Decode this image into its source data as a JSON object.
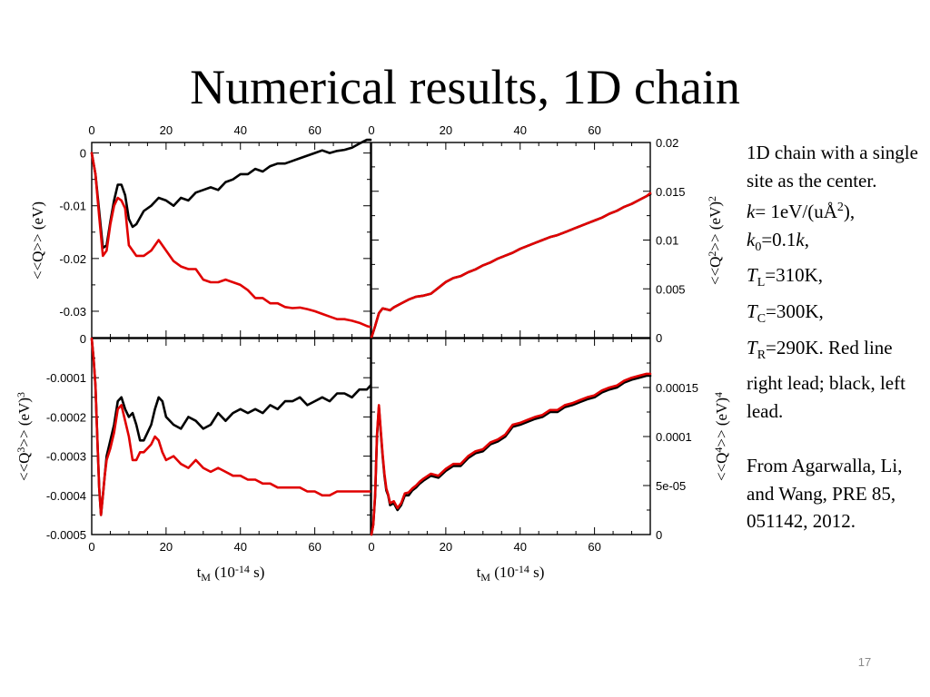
{
  "slide": {
    "title": "Numerical results, 1D chain",
    "page_number": "17",
    "notes": [
      {
        "text": "1D chain with a single site as the center."
      },
      {
        "parts": [
          {
            "t": "k",
            "i": true
          },
          {
            "t": "= 1eV/(uÅ"
          },
          {
            "t": "2",
            "sup": true
          },
          {
            "t": "),"
          }
        ]
      },
      {
        "parts": [
          {
            "t": "k",
            "i": true
          },
          {
            "t": "0",
            "sub": true
          },
          {
            "t": "=0.1"
          },
          {
            "t": "k",
            "i": true
          },
          {
            "t": ","
          }
        ]
      },
      {
        "parts": [
          {
            "t": "T",
            "i": true
          },
          {
            "t": "L",
            "sub": true
          },
          {
            "t": "=310K,"
          }
        ]
      },
      {
        "parts": [
          {
            "t": "T",
            "i": true
          },
          {
            "t": "C",
            "sub": true
          },
          {
            "t": "=300K,"
          }
        ]
      },
      {
        "parts": [
          {
            "t": "T",
            "i": true
          },
          {
            "t": "R",
            "sub": true
          },
          {
            "t": "=290K.  Red line right lead; black, left lead."
          }
        ]
      },
      {
        "gap": true
      },
      {
        "text": "From Agarwalla, Li, and Wang, PRE  85, 051142, 2012."
      }
    ]
  },
  "chart_data": [
    {
      "type": "line",
      "panel": "top-left",
      "ylabel": "<<Q>> (eV)",
      "xlim": [
        0,
        75
      ],
      "ylim": [
        -0.035,
        0.002
      ],
      "xticks": [
        "0",
        "20",
        "40",
        "60"
      ],
      "yticks": [
        "0",
        "-0.01",
        "-0.02",
        "-0.03"
      ],
      "series": [
        {
          "color": "#000000",
          "x": [
            0,
            1,
            2,
            3,
            4,
            5,
            6,
            7,
            8,
            9,
            10,
            11,
            12,
            14,
            16,
            18,
            20,
            22,
            24,
            26,
            28,
            30,
            32,
            34,
            36,
            38,
            40,
            42,
            44,
            46,
            48,
            50,
            52,
            54,
            56,
            58,
            60,
            62,
            64,
            66,
            68,
            70,
            72,
            74,
            75
          ],
          "y": [
            0,
            -0.004,
            -0.011,
            -0.018,
            -0.0175,
            -0.013,
            -0.009,
            -0.006,
            -0.006,
            -0.008,
            -0.0125,
            -0.014,
            -0.0135,
            -0.011,
            -0.01,
            -0.0085,
            -0.009,
            -0.01,
            -0.0085,
            -0.009,
            -0.0075,
            -0.007,
            -0.0065,
            -0.007,
            -0.0055,
            -0.005,
            -0.004,
            -0.004,
            -0.003,
            -0.0035,
            -0.0025,
            -0.002,
            -0.002,
            -0.0015,
            -0.001,
            -0.0005,
            0,
            0.0005,
            0,
            0.0004,
            0.0006,
            0.001,
            0.0018,
            0.0025,
            0.0025
          ]
        },
        {
          "color": "#e00000",
          "x": [
            0,
            1,
            2,
            3,
            4,
            5,
            6,
            7,
            8,
            9,
            10,
            12,
            14,
            16,
            18,
            20,
            22,
            24,
            26,
            28,
            30,
            32,
            34,
            36,
            38,
            40,
            42,
            44,
            46,
            48,
            50,
            52,
            54,
            56,
            58,
            60,
            62,
            64,
            66,
            68,
            70,
            72,
            74,
            75
          ],
          "y": [
            0,
            -0.004,
            -0.012,
            -0.0195,
            -0.0185,
            -0.0135,
            -0.01,
            -0.0085,
            -0.009,
            -0.0105,
            -0.0175,
            -0.0195,
            -0.0195,
            -0.0185,
            -0.0165,
            -0.0185,
            -0.0205,
            -0.0215,
            -0.022,
            -0.022,
            -0.024,
            -0.0245,
            -0.0245,
            -0.024,
            -0.0245,
            -0.025,
            -0.026,
            -0.0275,
            -0.0275,
            -0.0285,
            -0.0285,
            -0.0292,
            -0.0294,
            -0.0293,
            -0.0296,
            -0.03,
            -0.0305,
            -0.031,
            -0.0315,
            -0.0315,
            -0.0318,
            -0.0322,
            -0.0328,
            -0.033
          ]
        }
      ]
    },
    {
      "type": "line",
      "panel": "top-right",
      "ylabel": "<<Q2>> (eV)2",
      "xlim": [
        0,
        75
      ],
      "ylim": [
        0,
        0.02
      ],
      "xticks": [
        "0",
        "20",
        "40",
        "60"
      ],
      "yticks": [
        "0.02",
        "0.015",
        "0.01",
        "0.005",
        "0"
      ],
      "series": [
        {
          "color": "#000000",
          "x": [
            0,
            1,
            2,
            3,
            4,
            5,
            6,
            8,
            10,
            12,
            14,
            16,
            18,
            20,
            22,
            24,
            26,
            28,
            30,
            32,
            34,
            36,
            38,
            40,
            42,
            44,
            46,
            48,
            50,
            52,
            54,
            56,
            58,
            60,
            62,
            64,
            66,
            68,
            70,
            72,
            74,
            75
          ],
          "y": [
            0,
            0.0012,
            0.0025,
            0.003,
            0.0029,
            0.0028,
            0.0031,
            0.0035,
            0.0039,
            0.0042,
            0.0043,
            0.0045,
            0.0051,
            0.0057,
            0.0061,
            0.0063,
            0.0067,
            0.007,
            0.0074,
            0.0077,
            0.0081,
            0.0084,
            0.0087,
            0.0091,
            0.0094,
            0.0097,
            0.01,
            0.0103,
            0.0105,
            0.0108,
            0.0111,
            0.0114,
            0.0117,
            0.012,
            0.0123,
            0.0127,
            0.013,
            0.0134,
            0.0137,
            0.0141,
            0.0145,
            0.0147
          ]
        },
        {
          "color": "#e00000",
          "x": [
            0,
            1,
            2,
            3,
            4,
            5,
            6,
            8,
            10,
            12,
            14,
            16,
            18,
            20,
            22,
            24,
            26,
            28,
            30,
            32,
            34,
            36,
            38,
            40,
            42,
            44,
            46,
            48,
            50,
            52,
            54,
            56,
            58,
            60,
            62,
            64,
            66,
            68,
            70,
            72,
            74,
            75
          ],
          "y": [
            0,
            0.0012,
            0.0025,
            0.003,
            0.0029,
            0.0028,
            0.0031,
            0.0035,
            0.0039,
            0.0042,
            0.0043,
            0.0045,
            0.0051,
            0.0057,
            0.0061,
            0.0063,
            0.0067,
            0.007,
            0.0074,
            0.0077,
            0.0081,
            0.0084,
            0.0087,
            0.0091,
            0.0094,
            0.0097,
            0.01,
            0.0103,
            0.0105,
            0.0108,
            0.0111,
            0.0114,
            0.0117,
            0.012,
            0.0123,
            0.0127,
            0.013,
            0.0134,
            0.0137,
            0.0141,
            0.0145,
            0.0148
          ]
        }
      ]
    },
    {
      "type": "line",
      "panel": "bottom-left",
      "ylabel": "<<Q3>> (eV)3",
      "xlabel": "tM (10-14 s)",
      "xlim": [
        0,
        75
      ],
      "ylim": [
        -0.0005,
        0
      ],
      "xticks": [
        "0",
        "20",
        "40",
        "60"
      ],
      "yticks": [
        "0",
        "-0.0001",
        "-0.0002",
        "-0.0003",
        "-0.0004",
        "-0.0005"
      ],
      "series": [
        {
          "color": "#000000",
          "x": [
            0,
            0.5,
            1,
            1.5,
            2,
            2.5,
            3,
            3.5,
            4,
            5,
            6,
            7,
            8,
            9,
            10,
            11,
            12,
            13,
            14,
            15,
            16,
            17,
            18,
            19,
            20,
            22,
            24,
            26,
            28,
            30,
            32,
            34,
            36,
            38,
            40,
            42,
            44,
            46,
            48,
            50,
            52,
            54,
            56,
            58,
            60,
            62,
            64,
            66,
            68,
            70,
            72,
            74,
            75
          ],
          "y": [
            0,
            -5e-05,
            -0.00012,
            -0.00025,
            -0.00038,
            -0.00045,
            -0.0004,
            -0.00035,
            -0.0003,
            -0.00026,
            -0.00022,
            -0.00016,
            -0.00015,
            -0.00018,
            -0.0002,
            -0.00019,
            -0.00022,
            -0.00026,
            -0.00026,
            -0.00024,
            -0.00022,
            -0.00018,
            -0.00015,
            -0.00016,
            -0.0002,
            -0.00022,
            -0.00023,
            -0.0002,
            -0.00021,
            -0.00023,
            -0.00022,
            -0.00019,
            -0.00021,
            -0.00019,
            -0.00018,
            -0.00019,
            -0.00018,
            -0.00019,
            -0.00017,
            -0.00018,
            -0.00016,
            -0.00016,
            -0.00015,
            -0.00017,
            -0.00016,
            -0.00015,
            -0.00016,
            -0.00014,
            -0.00014,
            -0.00015,
            -0.00013,
            -0.00013,
            -0.00012
          ]
        },
        {
          "color": "#e00000",
          "x": [
            0,
            0.5,
            1,
            1.5,
            2,
            2.5,
            3,
            3.5,
            4,
            5,
            6,
            7,
            8,
            9,
            10,
            11,
            12,
            13,
            14,
            15,
            16,
            17,
            18,
            19,
            20,
            22,
            24,
            26,
            28,
            30,
            32,
            34,
            36,
            38,
            40,
            42,
            44,
            46,
            48,
            50,
            52,
            54,
            56,
            58,
            60,
            62,
            64,
            66,
            68,
            70,
            72,
            74,
            75
          ],
          "y": [
            0,
            -5e-05,
            -0.00012,
            -0.00025,
            -0.00038,
            -0.00045,
            -0.0004,
            -0.00035,
            -0.00031,
            -0.00028,
            -0.00024,
            -0.00018,
            -0.00017,
            -0.00021,
            -0.00025,
            -0.00031,
            -0.00031,
            -0.00029,
            -0.00029,
            -0.00028,
            -0.00027,
            -0.00025,
            -0.00026,
            -0.00029,
            -0.00031,
            -0.0003,
            -0.00032,
            -0.00033,
            -0.00031,
            -0.00033,
            -0.00034,
            -0.00033,
            -0.00034,
            -0.00035,
            -0.00035,
            -0.00036,
            -0.00036,
            -0.00037,
            -0.00037,
            -0.00038,
            -0.00038,
            -0.00038,
            -0.00038,
            -0.00039,
            -0.00039,
            -0.0004,
            -0.0004,
            -0.00039,
            -0.00039,
            -0.00039,
            -0.00039,
            -0.00039,
            -0.00039
          ]
        }
      ]
    },
    {
      "type": "line",
      "panel": "bottom-right",
      "ylabel": "<<Q4>> (eV)4",
      "xlabel": "tM (10-14 s)",
      "xlim": [
        0,
        75
      ],
      "ylim": [
        0,
        0.0002
      ],
      "xticks": [
        "0",
        "20",
        "40",
        "60"
      ],
      "yticks": [
        "0",
        "5e-05",
        "0.0001",
        "0.00015"
      ],
      "series": [
        {
          "color": "#000000",
          "x": [
            0,
            0.5,
            1,
            1.5,
            2,
            2.5,
            3,
            3.5,
            4,
            4.5,
            5,
            6,
            7,
            8,
            9,
            10,
            11,
            12,
            13,
            14,
            16,
            18,
            20,
            22,
            24,
            26,
            28,
            30,
            32,
            34,
            36,
            38,
            40,
            42,
            44,
            46,
            48,
            50,
            52,
            54,
            56,
            58,
            60,
            62,
            64,
            66,
            68,
            70,
            72,
            74,
            75
          ],
          "y": [
            0,
            1e-05,
            4e-05,
            0.0001,
            0.00013,
            0.000105,
            8e-05,
            6e-05,
            4.5e-05,
            4e-05,
            3e-05,
            3.2e-05,
            2.5e-05,
            3e-05,
            4e-05,
            4e-05,
            4.5e-05,
            4.8e-05,
            5.2e-05,
            5.5e-05,
            6e-05,
            5.8e-05,
            6.5e-05,
            7e-05,
            7e-05,
            7.8e-05,
            8.3e-05,
            8.5e-05,
            9.2e-05,
            9.5e-05,
            0.0001,
            0.00011,
            0.000112,
            0.000115,
            0.000118,
            0.00012,
            0.000125,
            0.000125,
            0.00013,
            0.000132,
            0.000135,
            0.000138,
            0.00014,
            0.000145,
            0.000148,
            0.00015,
            0.000155,
            0.000158,
            0.00016,
            0.000162,
            0.000162
          ]
        },
        {
          "color": "#e00000",
          "x": [
            0,
            0.5,
            1,
            1.5,
            2,
            2.5,
            3,
            3.5,
            4,
            4.5,
            5,
            6,
            7,
            8,
            9,
            10,
            11,
            12,
            13,
            14,
            16,
            18,
            20,
            22,
            24,
            26,
            28,
            30,
            32,
            34,
            36,
            38,
            40,
            42,
            44,
            46,
            48,
            50,
            52,
            54,
            56,
            58,
            60,
            62,
            64,
            66,
            68,
            70,
            72,
            74,
            75
          ],
          "y": [
            0,
            1e-05,
            4.2e-05,
            0.000102,
            0.000132,
            0.000107,
            8.2e-05,
            6.2e-05,
            4.7e-05,
            4.1e-05,
            3.2e-05,
            3.4e-05,
            2.7e-05,
            3.2e-05,
            4.2e-05,
            4.3e-05,
            4.7e-05,
            5e-05,
            5.4e-05,
            5.7e-05,
            6.2e-05,
            6e-05,
            6.7e-05,
            7.2e-05,
            7.2e-05,
            8e-05,
            8.5e-05,
            8.7e-05,
            9.4e-05,
            9.7e-05,
            0.000102,
            0.000112,
            0.000114,
            0.000117,
            0.00012,
            0.000122,
            0.000127,
            0.000127,
            0.000132,
            0.000134,
            0.000137,
            0.00014,
            0.000142,
            0.000147,
            0.00015,
            0.000152,
            0.000157,
            0.00016,
            0.000162,
            0.000164,
            0.000164
          ]
        }
      ]
    }
  ]
}
